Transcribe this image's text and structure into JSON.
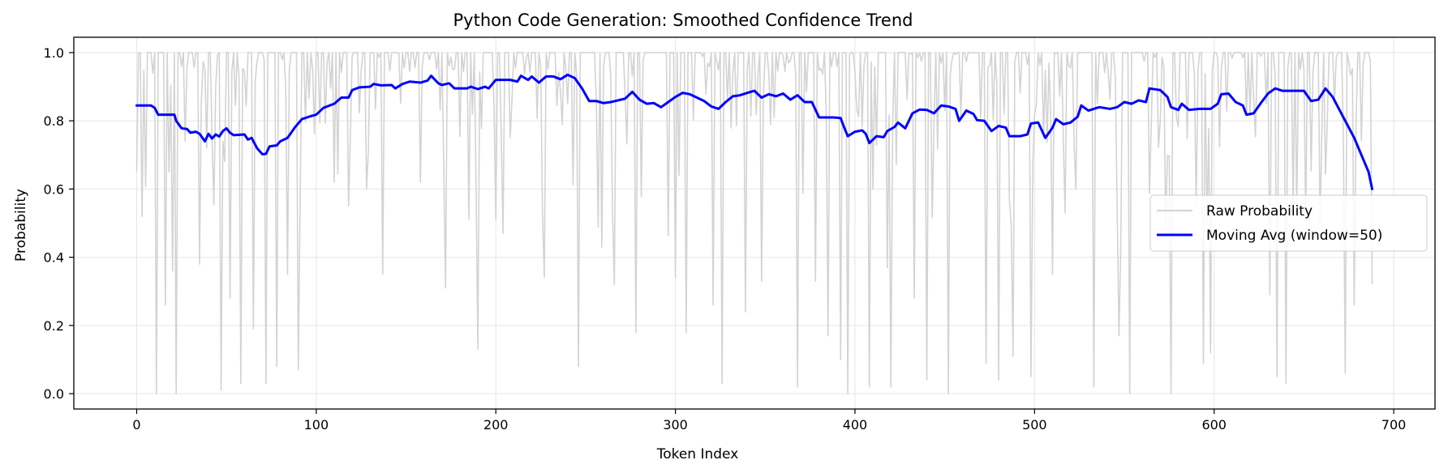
{
  "chart_data": {
    "type": "line",
    "title": "Python Code Generation: Smoothed Confidence Trend",
    "xlabel": "Token Index",
    "ylabel": "Probability",
    "xlim": [
      -35,
      723
    ],
    "ylim": [
      -0.045,
      1.045
    ],
    "xticks": [
      0,
      100,
      200,
      300,
      400,
      500,
      600,
      700
    ],
    "xtick_labels": [
      "0",
      "100",
      "200",
      "300",
      "400",
      "500",
      "600",
      "700"
    ],
    "yticks": [
      0.0,
      0.2,
      0.4,
      0.6,
      0.8,
      1.0
    ],
    "ytick_labels": [
      "0.0",
      "0.2",
      "0.4",
      "0.6",
      "0.8",
      "1.0"
    ],
    "grid": true,
    "legend_position": "center right",
    "series": [
      {
        "name": "Raw Probability",
        "color": "#d3d3d3",
        "style": "thin",
        "n_points": 689,
        "visible_dips": [
          [
            3,
            0.52
          ],
          [
            11,
            0.0
          ],
          [
            16,
            0.26
          ],
          [
            20,
            0.36
          ],
          [
            22,
            0.0
          ],
          [
            35,
            0.38
          ],
          [
            47,
            0.01
          ],
          [
            52,
            0.28
          ],
          [
            58,
            0.03
          ],
          [
            65,
            0.19
          ],
          [
            72,
            0.03
          ],
          [
            78,
            0.08
          ],
          [
            84,
            0.35
          ],
          [
            90,
            0.07
          ],
          [
            110,
            0.62
          ],
          [
            118,
            0.55
          ],
          [
            128,
            0.6
          ],
          [
            137,
            0.35
          ],
          [
            158,
            0.62
          ],
          [
            172,
            0.31
          ],
          [
            190,
            0.13
          ],
          [
            204,
            0.47
          ],
          [
            227,
            0.34
          ],
          [
            246,
            0.08
          ],
          [
            259,
            0.43
          ],
          [
            266,
            0.32
          ],
          [
            278,
            0.18
          ],
          [
            300,
            0.34
          ],
          [
            302,
            0.64
          ],
          [
            306,
            0.18
          ],
          [
            321,
            0.26
          ],
          [
            326,
            0.03
          ],
          [
            339,
            0.24
          ],
          [
            348,
            0.33
          ],
          [
            368,
            0.02
          ],
          [
            378,
            0.33
          ],
          [
            385,
            0.17
          ],
          [
            392,
            0.1
          ],
          [
            396,
            0.0
          ],
          [
            408,
            0.02
          ],
          [
            418,
            0.37
          ],
          [
            420,
            0.02
          ],
          [
            433,
            0.28
          ],
          [
            440,
            0.04
          ],
          [
            452,
            0.0
          ],
          [
            473,
            0.09
          ],
          [
            480,
            0.04
          ],
          [
            488,
            0.11
          ],
          [
            498,
            0.05
          ],
          [
            510,
            0.35
          ],
          [
            523,
            0.6
          ],
          [
            533,
            0.02
          ],
          [
            547,
            0.17
          ],
          [
            548,
            0.43
          ],
          [
            553,
            0.0
          ],
          [
            573,
            0.49
          ],
          [
            576,
            0.0
          ],
          [
            590,
            0.55
          ],
          [
            594,
            0.09
          ],
          [
            598,
            0.12
          ],
          [
            631,
            0.29
          ],
          [
            635,
            0.05
          ],
          [
            640,
            0.03
          ],
          [
            673,
            0.06
          ],
          [
            678,
            0.26
          ],
          [
            688,
            0.32
          ]
        ]
      },
      {
        "name": "Moving Avg (window=50)",
        "color": "#0000ff",
        "style": "thick",
        "points": [
          [
            0,
            0.845
          ],
          [
            5,
            0.845
          ],
          [
            8,
            0.845
          ],
          [
            10,
            0.838
          ],
          [
            12,
            0.818
          ],
          [
            21,
            0.818
          ],
          [
            22,
            0.8
          ],
          [
            25,
            0.778
          ],
          [
            28,
            0.776
          ],
          [
            30,
            0.765
          ],
          [
            33,
            0.768
          ],
          [
            35,
            0.762
          ],
          [
            38,
            0.74
          ],
          [
            40,
            0.762
          ],
          [
            42,
            0.748
          ],
          [
            44,
            0.76
          ],
          [
            46,
            0.754
          ],
          [
            48,
            0.77
          ],
          [
            50,
            0.778
          ],
          [
            52,
            0.765
          ],
          [
            54,
            0.758
          ],
          [
            60,
            0.76
          ],
          [
            62,
            0.745
          ],
          [
            64,
            0.75
          ],
          [
            67,
            0.72
          ],
          [
            70,
            0.702
          ],
          [
            72,
            0.703
          ],
          [
            74,
            0.725
          ],
          [
            78,
            0.728
          ],
          [
            80,
            0.74
          ],
          [
            84,
            0.75
          ],
          [
            88,
            0.78
          ],
          [
            92,
            0.805
          ],
          [
            96,
            0.812
          ],
          [
            100,
            0.818
          ],
          [
            104,
            0.838
          ],
          [
            110,
            0.85
          ],
          [
            114,
            0.868
          ],
          [
            118,
            0.868
          ],
          [
            120,
            0.89
          ],
          [
            124,
            0.898
          ],
          [
            130,
            0.9
          ],
          [
            132,
            0.908
          ],
          [
            136,
            0.904
          ],
          [
            142,
            0.905
          ],
          [
            144,
            0.895
          ],
          [
            148,
            0.908
          ],
          [
            152,
            0.915
          ],
          [
            158,
            0.912
          ],
          [
            162,
            0.918
          ],
          [
            164,
            0.932
          ],
          [
            168,
            0.91
          ],
          [
            170,
            0.905
          ],
          [
            174,
            0.91
          ],
          [
            177,
            0.895
          ],
          [
            184,
            0.895
          ],
          [
            186,
            0.9
          ],
          [
            190,
            0.893
          ],
          [
            194,
            0.9
          ],
          [
            196,
            0.895
          ],
          [
            200,
            0.92
          ],
          [
            208,
            0.92
          ],
          [
            212,
            0.915
          ],
          [
            214,
            0.932
          ],
          [
            218,
            0.92
          ],
          [
            220,
            0.93
          ],
          [
            224,
            0.912
          ],
          [
            228,
            0.93
          ],
          [
            232,
            0.93
          ],
          [
            236,
            0.922
          ],
          [
            240,
            0.935
          ],
          [
            244,
            0.925
          ],
          [
            248,
            0.895
          ],
          [
            252,
            0.858
          ],
          [
            256,
            0.858
          ],
          [
            260,
            0.852
          ],
          [
            264,
            0.855
          ],
          [
            268,
            0.86
          ],
          [
            272,
            0.865
          ],
          [
            276,
            0.885
          ],
          [
            280,
            0.862
          ],
          [
            284,
            0.85
          ],
          [
            288,
            0.852
          ],
          [
            292,
            0.84
          ],
          [
            296,
            0.855
          ],
          [
            300,
            0.87
          ],
          [
            304,
            0.882
          ],
          [
            308,
            0.878
          ],
          [
            312,
            0.868
          ],
          [
            316,
            0.858
          ],
          [
            320,
            0.842
          ],
          [
            324,
            0.835
          ],
          [
            328,
            0.855
          ],
          [
            332,
            0.872
          ],
          [
            336,
            0.875
          ],
          [
            340,
            0.882
          ],
          [
            344,
            0.888
          ],
          [
            348,
            0.868
          ],
          [
            352,
            0.878
          ],
          [
            356,
            0.872
          ],
          [
            360,
            0.88
          ],
          [
            364,
            0.862
          ],
          [
            368,
            0.875
          ],
          [
            372,
            0.855
          ],
          [
            376,
            0.855
          ],
          [
            380,
            0.81
          ],
          [
            388,
            0.81
          ],
          [
            392,
            0.808
          ],
          [
            394,
            0.78
          ],
          [
            396,
            0.755
          ],
          [
            400,
            0.768
          ],
          [
            404,
            0.772
          ],
          [
            406,
            0.762
          ],
          [
            408,
            0.735
          ],
          [
            412,
            0.755
          ],
          [
            416,
            0.752
          ],
          [
            418,
            0.77
          ],
          [
            422,
            0.782
          ],
          [
            424,
            0.795
          ],
          [
            428,
            0.778
          ],
          [
            432,
            0.822
          ],
          [
            436,
            0.833
          ],
          [
            440,
            0.832
          ],
          [
            444,
            0.822
          ],
          [
            448,
            0.845
          ],
          [
            452,
            0.842
          ],
          [
            456,
            0.835
          ],
          [
            458,
            0.8
          ],
          [
            462,
            0.83
          ],
          [
            466,
            0.82
          ],
          [
            468,
            0.802
          ],
          [
            472,
            0.8
          ],
          [
            476,
            0.77
          ],
          [
            480,
            0.785
          ],
          [
            484,
            0.78
          ],
          [
            486,
            0.755
          ],
          [
            492,
            0.755
          ],
          [
            496,
            0.76
          ],
          [
            498,
            0.792
          ],
          [
            502,
            0.795
          ],
          [
            506,
            0.75
          ],
          [
            510,
            0.78
          ],
          [
            512,
            0.805
          ],
          [
            516,
            0.79
          ],
          [
            520,
            0.795
          ],
          [
            524,
            0.812
          ],
          [
            526,
            0.845
          ],
          [
            530,
            0.83
          ],
          [
            536,
            0.84
          ],
          [
            542,
            0.835
          ],
          [
            546,
            0.84
          ],
          [
            550,
            0.855
          ],
          [
            554,
            0.85
          ],
          [
            558,
            0.86
          ],
          [
            562,
            0.855
          ],
          [
            564,
            0.895
          ],
          [
            570,
            0.89
          ],
          [
            574,
            0.87
          ],
          [
            576,
            0.84
          ],
          [
            580,
            0.832
          ],
          [
            582,
            0.85
          ],
          [
            586,
            0.832
          ],
          [
            592,
            0.835
          ],
          [
            598,
            0.835
          ],
          [
            602,
            0.85
          ],
          [
            604,
            0.878
          ],
          [
            608,
            0.88
          ],
          [
            612,
            0.855
          ],
          [
            616,
            0.845
          ],
          [
            618,
            0.818
          ],
          [
            622,
            0.822
          ],
          [
            626,
            0.852
          ],
          [
            630,
            0.88
          ],
          [
            634,
            0.895
          ],
          [
            638,
            0.888
          ],
          [
            650,
            0.888
          ],
          [
            654,
            0.858
          ],
          [
            658,
            0.862
          ],
          [
            662,
            0.895
          ],
          [
            666,
            0.87
          ],
          [
            670,
            0.83
          ],
          [
            674,
            0.79
          ],
          [
            678,
            0.75
          ],
          [
            682,
            0.7
          ],
          [
            686,
            0.65
          ],
          [
            688,
            0.6
          ]
        ]
      }
    ]
  }
}
